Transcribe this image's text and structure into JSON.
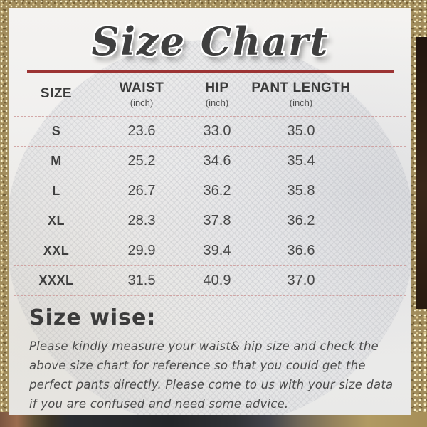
{
  "page": {
    "title": "Size Chart"
  },
  "table": {
    "columns": [
      {
        "label": "SIZE",
        "sub": ""
      },
      {
        "label": "WAIST",
        "sub": "(inch)"
      },
      {
        "label": "HIP",
        "sub": "(inch)"
      },
      {
        "label": "PANT LENGTH",
        "sub": "(inch)"
      }
    ],
    "rows": [
      [
        "S",
        "23.6",
        "33.0",
        "35.0"
      ],
      [
        "M",
        "25.2",
        "34.6",
        "35.4"
      ],
      [
        "L",
        "26.7",
        "36.2",
        "35.8"
      ],
      [
        "XL",
        "28.3",
        "37.8",
        "36.2"
      ],
      [
        "XXL",
        "29.9",
        "39.4",
        "36.6"
      ],
      [
        "XXXL",
        "31.5",
        "40.9",
        "37.0"
      ]
    ]
  },
  "note": {
    "heading": "Size wise:",
    "body": "Please kindly measure your waist& hip size and check the above size chart for reference so that you could get the perfect pants directly. Please come to us with your size data if you are confused and need some advice."
  },
  "chart_data": {
    "type": "table",
    "title": "Size Chart",
    "unit": "inch",
    "categories": [
      "S",
      "M",
      "L",
      "XL",
      "XXL",
      "XXXL"
    ],
    "series": [
      {
        "name": "WAIST (inch)",
        "values": [
          23.6,
          25.2,
          26.7,
          28.3,
          29.9,
          31.5
        ]
      },
      {
        "name": "HIP (inch)",
        "values": [
          33.0,
          34.6,
          36.2,
          37.8,
          39.4,
          40.9
        ]
      },
      {
        "name": "PANT LENGTH (inch)",
        "values": [
          35.0,
          35.4,
          35.8,
          36.2,
          36.6,
          37.0
        ]
      }
    ]
  },
  "colors": {
    "accent-line": "#9c3434",
    "divider": "#c98f8f",
    "title-text": "#3f3f3f",
    "body-text": "#4b4b4b",
    "gold": "#a18c5c",
    "panel": "#f2f1ef"
  }
}
